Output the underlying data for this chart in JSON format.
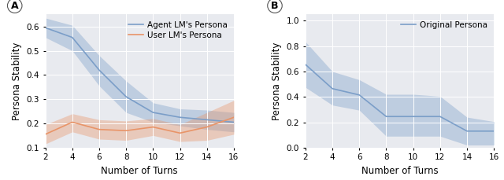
{
  "x": [
    2,
    4,
    6,
    8,
    10,
    12,
    14,
    16
  ],
  "panel_a": {
    "agent_mean": [
      0.595,
      0.555,
      0.42,
      0.31,
      0.245,
      0.225,
      0.215,
      0.205
    ],
    "agent_upper": [
      0.635,
      0.605,
      0.48,
      0.375,
      0.285,
      0.26,
      0.255,
      0.245
    ],
    "agent_lower": [
      0.555,
      0.5,
      0.355,
      0.245,
      0.205,
      0.19,
      0.175,
      0.165
    ],
    "user_mean": [
      0.155,
      0.205,
      0.175,
      0.17,
      0.185,
      0.16,
      0.185,
      0.225
    ],
    "user_upper": [
      0.195,
      0.24,
      0.215,
      0.21,
      0.22,
      0.195,
      0.245,
      0.295
    ],
    "user_lower": [
      0.115,
      0.165,
      0.135,
      0.13,
      0.15,
      0.125,
      0.13,
      0.155
    ],
    "ylim": [
      0.1,
      0.65
    ],
    "yticks": [
      0.1,
      0.2,
      0.3,
      0.4,
      0.5,
      0.6
    ],
    "ylabel": "Persona Stability",
    "xlabel": "Number of Turns",
    "agent_color": "#7b9ec8",
    "user_color": "#e89468",
    "agent_label": "Agent LM's Persona",
    "user_label": "User LM's Persona",
    "panel_label": "A"
  },
  "panel_b": {
    "orig_mean": [
      0.655,
      0.465,
      0.415,
      0.245,
      0.245,
      0.245,
      0.13,
      0.13
    ],
    "orig_upper": [
      0.835,
      0.6,
      0.535,
      0.42,
      0.42,
      0.405,
      0.24,
      0.205
    ],
    "orig_lower": [
      0.475,
      0.335,
      0.295,
      0.09,
      0.09,
      0.09,
      0.02,
      0.02
    ],
    "ylim": [
      0.0,
      1.05
    ],
    "yticks": [
      0.0,
      0.2,
      0.4,
      0.6,
      0.8,
      1.0
    ],
    "ylabel": "Persona Stability",
    "xlabel": "Number of Turns",
    "orig_color": "#7b9ec8",
    "orig_label": "Original Persona",
    "panel_label": "B"
  },
  "plot_bg_color": "#e8eaef",
  "fig_bg_color": "#ffffff",
  "xticks": [
    2,
    4,
    6,
    8,
    10,
    12,
    14,
    16
  ],
  "tick_fontsize": 7.5,
  "label_fontsize": 8.5,
  "legend_fontsize": 7.5
}
